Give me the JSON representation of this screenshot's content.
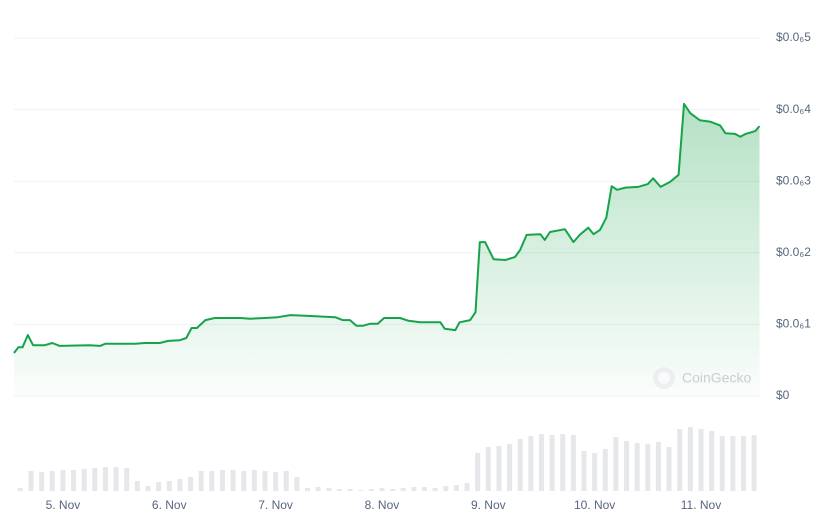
{
  "chart_data": {
    "type": "line",
    "watermark": "CoinGecko",
    "color": "#16a34a",
    "grid": true,
    "x": [
      4.54,
      4.58,
      4.62,
      4.67,
      4.72,
      4.83,
      4.9,
      4.97,
      5.25,
      5.35,
      5.4,
      5.68,
      5.77,
      5.91,
      5.99,
      6.1,
      6.16,
      6.21,
      6.26,
      6.34,
      6.43,
      6.67,
      6.76,
      6.9,
      7.02,
      7.14,
      7.28,
      7.56,
      7.63,
      7.7,
      7.76,
      7.82,
      7.89,
      7.96,
      8.02,
      8.17,
      8.25,
      8.36,
      8.55,
      8.59,
      8.69,
      8.73,
      8.83,
      8.88,
      8.92,
      8.97,
      9.05,
      9.16,
      9.25,
      9.3,
      9.36,
      9.49,
      9.53,
      9.58,
      9.72,
      9.8,
      9.86,
      9.94,
      9.99,
      10.05,
      10.11,
      10.16,
      10.21,
      10.29,
      10.41,
      10.5,
      10.55,
      10.62,
      10.71,
      10.79,
      10.84,
      10.9,
      10.99,
      11.09,
      11.18,
      11.23,
      11.32,
      11.37,
      11.42,
      11.51,
      11.55
    ],
    "values": [
      6e-08,
      6.8e-08,
      6.8e-08,
      8.5e-08,
      7.1e-08,
      7.1e-08,
      7.4e-08,
      7e-08,
      7.1e-08,
      7e-08,
      7.3e-08,
      7.3e-08,
      7.4e-08,
      7.4e-08,
      7.7e-08,
      7.8e-08,
      8.1e-08,
      9.5e-08,
      9.5e-08,
      1.06e-07,
      1.09e-07,
      1.09e-07,
      1.08e-07,
      1.09e-07,
      1.1e-07,
      1.13e-07,
      1.12e-07,
      1.1e-07,
      1.06e-07,
      1.06e-07,
      9.8e-08,
      9.8e-08,
      1.01e-07,
      1.01e-07,
      1.09e-07,
      1.09e-07,
      1.05e-07,
      1.03e-07,
      1.03e-07,
      9.4e-08,
      9.2e-08,
      1.03e-07,
      1.06e-07,
      1.17e-07,
      2.15e-07,
      2.15e-07,
      1.91e-07,
      1.9e-07,
      1.94e-07,
      2.04e-07,
      2.25e-07,
      2.26e-07,
      2.18e-07,
      2.29e-07,
      2.33e-07,
      2.15e-07,
      2.25e-07,
      2.35e-07,
      2.26e-07,
      2.32e-07,
      2.49e-07,
      2.93e-07,
      2.88e-07,
      2.91e-07,
      2.92e-07,
      2.96e-07,
      3.04e-07,
      2.92e-07,
      2.99e-07,
      3.09e-07,
      4.08e-07,
      3.95e-07,
      3.85e-07,
      3.83e-07,
      3.78e-07,
      3.67e-07,
      3.66e-07,
      3.62e-07,
      3.66e-07,
      3.7e-07,
      3.77e-07
    ],
    "xlim": [
      4.54,
      11.555
    ],
    "xticks": [
      {
        "value": 5,
        "label": "5. Nov"
      },
      {
        "value": 6,
        "label": "6. Nov"
      },
      {
        "value": 7,
        "label": "7. Nov"
      },
      {
        "value": 8,
        "label": "8. Nov"
      },
      {
        "value": 9,
        "label": "9. Nov"
      },
      {
        "value": 10,
        "label": "10. Nov"
      },
      {
        "value": 11,
        "label": "11. Nov"
      }
    ],
    "ylim": [
      0,
      5e-07
    ],
    "yticks": [
      {
        "value": 0,
        "label": "$0"
      },
      {
        "value": 1e-07,
        "label": "$0.0₆1"
      },
      {
        "value": 2e-07,
        "label": "$0.0₆2"
      },
      {
        "value": 3e-07,
        "label": "$0.0₆3"
      },
      {
        "value": 4e-07,
        "label": "$0.0₆4"
      },
      {
        "value": 5e-07,
        "label": "$0.0₆5"
      }
    ],
    "volume": {
      "color": "#e5e7eb",
      "ylim": [
        0,
        80
      ],
      "x": [
        4.6,
        4.7,
        4.8,
        4.9,
        5.0,
        5.1,
        5.2,
        5.3,
        5.4,
        5.5,
        5.6,
        5.7,
        5.8,
        5.9,
        6.0,
        6.1,
        6.2,
        6.3,
        6.4,
        6.5,
        6.6,
        6.7,
        6.8,
        6.9,
        7.0,
        7.1,
        7.2,
        7.3,
        7.4,
        7.5,
        7.6,
        7.7,
        7.8,
        7.9,
        8.0,
        8.1,
        8.2,
        8.3,
        8.4,
        8.5,
        8.6,
        8.7,
        8.8,
        8.9,
        9.0,
        9.1,
        9.2,
        9.3,
        9.4,
        9.5,
        9.6,
        9.7,
        9.8,
        9.9,
        10.0,
        10.1,
        10.2,
        10.3,
        10.4,
        10.5,
        10.6,
        10.7,
        10.8,
        10.9,
        11.0,
        11.1,
        11.2,
        11.3,
        11.4,
        11.5
      ],
      "values": [
        3,
        20,
        19,
        20,
        21,
        21,
        22,
        23,
        24,
        24,
        23,
        10,
        5,
        9,
        10,
        12,
        14,
        20,
        20,
        21,
        21,
        20,
        21,
        20,
        19,
        20,
        14,
        3,
        4,
        3,
        2,
        2,
        1,
        2,
        3,
        2,
        3,
        4,
        4,
        3,
        5,
        6,
        8,
        38,
        44,
        45,
        47,
        52,
        55,
        57,
        56,
        57,
        56,
        40,
        38,
        42,
        54,
        50,
        48,
        47,
        49,
        44,
        62,
        64,
        62,
        60,
        55,
        55,
        55,
        56
      ]
    }
  }
}
